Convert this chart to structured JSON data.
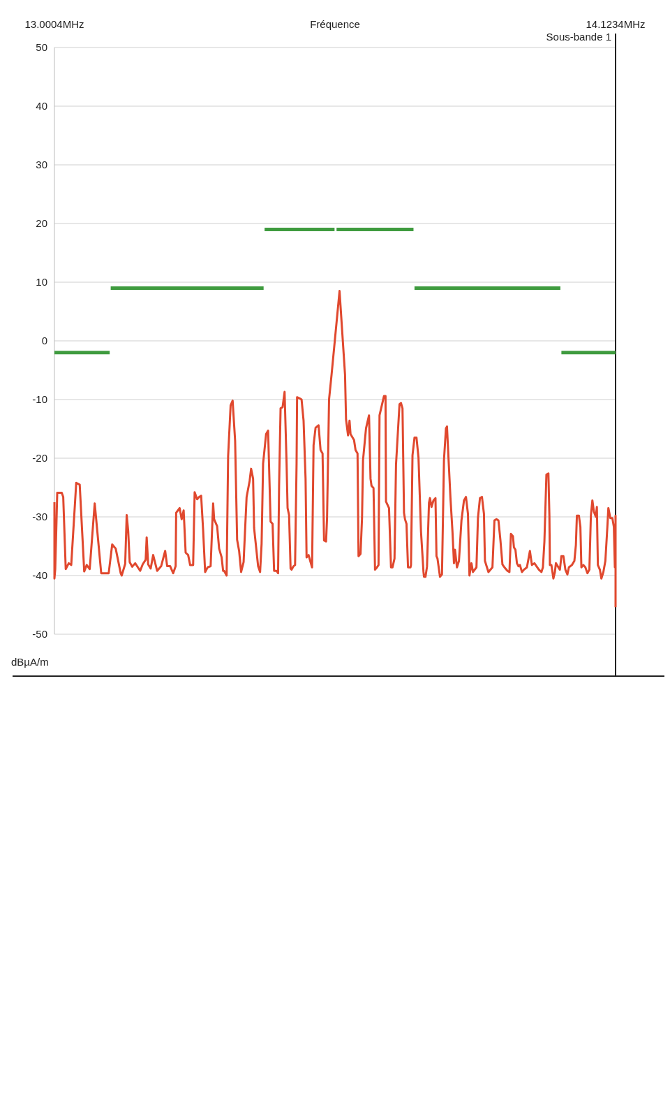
{
  "chart_data": {
    "type": "line",
    "xlabel": "Fréquence",
    "ylabel": "dBµA/m",
    "annotations": [
      "Sous-bande 1"
    ],
    "xlim": [
      13.0004,
      14.1234
    ],
    "xticks": [
      {
        "value": 13.0004,
        "label": "13.0004MHz"
      },
      {
        "value": 14.1234,
        "label": "14.1234MHz"
      }
    ],
    "ylim": [
      -50,
      50
    ],
    "yticks": [
      50,
      40,
      30,
      20,
      10,
      0,
      -10,
      -20,
      -30,
      -40,
      -50
    ],
    "grid": "y",
    "line_style": "solid",
    "series": [
      {
        "color": "#e0482e",
        "x": [
          13.0004,
          13.0004,
          13.002,
          13.006,
          13.015,
          13.018,
          13.023,
          13.029,
          13.034,
          13.044,
          13.051,
          13.06,
          13.065,
          13.071,
          13.081,
          13.094,
          13.109,
          13.116,
          13.123,
          13.133,
          13.135,
          13.142,
          13.145,
          13.148,
          13.151,
          13.156,
          13.162,
          13.172,
          13.177,
          13.183,
          13.185,
          13.188,
          13.193,
          13.198,
          13.206,
          13.214,
          13.222,
          13.226,
          13.232,
          13.238,
          13.243,
          13.244,
          13.251,
          13.255,
          13.259,
          13.263,
          13.268,
          13.272,
          13.278,
          13.281,
          13.286,
          13.29,
          13.294,
          13.298,
          13.302,
          13.307,
          13.313,
          13.318,
          13.32,
          13.326,
          13.33,
          13.335,
          13.338,
          13.34,
          13.345,
          13.348,
          13.353,
          13.357,
          13.362,
          13.366,
          13.37,
          13.374,
          13.379,
          13.385,
          13.391,
          13.394,
          13.398,
          13.4,
          13.408,
          13.412,
          13.415,
          13.418,
          13.424,
          13.428,
          13.433,
          13.437,
          13.44,
          13.445,
          13.448,
          13.45,
          13.453,
          13.457,
          13.461,
          13.465,
          13.467,
          13.47,
          13.473,
          13.475,
          13.479,
          13.482,
          13.485,
          13.486,
          13.491,
          13.495,
          13.499,
          13.503,
          13.505,
          13.509,
          13.516,
          13.519,
          13.523,
          13.529,
          13.533,
          13.537,
          13.54,
          13.544,
          13.546,
          13.55,
          13.555,
          13.571,
          13.582,
          13.584,
          13.588,
          13.591,
          13.593,
          13.6,
          13.603,
          13.607,
          13.609,
          13.613,
          13.616,
          13.618,
          13.624,
          13.63,
          13.633,
          13.635,
          13.639,
          13.642,
          13.646,
          13.649,
          13.651,
          13.66,
          13.663,
          13.664,
          13.67,
          13.674,
          13.677,
          13.681,
          13.684,
          13.691,
          13.694,
          13.697,
          13.7,
          13.702,
          13.705,
          13.708,
          13.713,
          13.714,
          13.717,
          13.721,
          13.725,
          13.729,
          13.734,
          13.739,
          13.74,
          13.743,
          13.746,
          13.75,
          13.752,
          13.755,
          13.759,
          13.763,
          13.765,
          13.767,
          13.772,
          13.776,
          13.78,
          13.784,
          13.786,
          13.789,
          13.793,
          13.797,
          13.8,
          13.802,
          13.806,
          13.81,
          13.815,
          13.82,
          13.824,
          13.828,
          13.831,
          13.835,
          13.838,
          13.845,
          13.848,
          13.852,
          13.856,
          13.86,
          13.862,
          13.866,
          13.869,
          13.877,
          13.881,
          13.885,
          13.889,
          13.893,
          13.897,
          13.901,
          13.907,
          13.911,
          13.914,
          13.918,
          13.92,
          13.923,
          13.926,
          13.929,
          13.932,
          13.936,
          13.94,
          13.946,
          13.952,
          13.956,
          13.961,
          13.97,
          13.975,
          13.978,
          13.981,
          13.985,
          13.989,
          13.991,
          13.992,
          13.995,
          13.999,
          14.002,
          14.004,
          14.012,
          14.015,
          14.019,
          14.023,
          14.027,
          14.03,
          14.036,
          14.041,
          14.044,
          14.046,
          14.05,
          14.053,
          14.055,
          14.059,
          14.063,
          14.067,
          14.071,
          14.074,
          14.077,
          14.08,
          14.084,
          14.086,
          14.088,
          14.092,
          14.095,
          14.099,
          14.103,
          14.107,
          14.109,
          14.113,
          14.117,
          14.12,
          14.122,
          14.1234,
          14.1234,
          14.1234
        ],
        "values": [
          -27.5,
          -40.5,
          -38.9,
          -25.9,
          -25.9,
          -26.6,
          -38.9,
          -37.9,
          -38.2,
          -24.2,
          -24.5,
          -39.3,
          -38.2,
          -38.9,
          -27.7,
          -39.6,
          -39.6,
          -34.7,
          -35.4,
          -39.6,
          -40,
          -38,
          -29.7,
          -32.4,
          -37.7,
          -38.5,
          -37.9,
          -39.2,
          -38.1,
          -37.3,
          -33.5,
          -38.1,
          -38.8,
          -36.5,
          -39.2,
          -38.4,
          -35.8,
          -38.4,
          -38.4,
          -39.6,
          -38.4,
          -29.3,
          -28.5,
          -30.4,
          -28.9,
          -36.1,
          -36.5,
          -38.2,
          -38.2,
          -25.8,
          -27,
          -26.6,
          -26.4,
          -32.3,
          -39.4,
          -38.6,
          -38.4,
          -27.7,
          -30.4,
          -31.6,
          -35.4,
          -36.9,
          -39.2,
          -39.2,
          -40,
          -19.7,
          -11,
          -10.2,
          -17,
          -33.9,
          -35.8,
          -39.4,
          -37.7,
          -26.6,
          -23.9,
          -21.8,
          -23.5,
          -31.9,
          -38.4,
          -39.4,
          -34.6,
          -20.9,
          -15.9,
          -15.3,
          -30.8,
          -31.2,
          -39.2,
          -39.2,
          -39.6,
          -24.7,
          -11.5,
          -11.3,
          -8.7,
          -20.9,
          -28.5,
          -29.7,
          -38.8,
          -39,
          -38.4,
          -38.2,
          -20.9,
          -9.6,
          -9.8,
          -10,
          -13.6,
          -23.5,
          -36.9,
          -36.5,
          -38.6,
          -17.8,
          -14.8,
          -14.4,
          -18.6,
          -19.2,
          -34,
          -34.2,
          -30.2,
          -10,
          -5.8,
          8.5,
          -5.8,
          -13.4,
          -16.1,
          -13.6,
          -15.9,
          -16.9,
          -18.6,
          -19.2,
          -36.7,
          -36.3,
          -30.2,
          -20.3,
          -14.9,
          -12.7,
          -23.5,
          -24.7,
          -25.1,
          -39,
          -38.6,
          -38.2,
          -12.7,
          -9.4,
          -9.4,
          -27.4,
          -28.5,
          -38.6,
          -38.6,
          -37.1,
          -21.1,
          -10.8,
          -10.6,
          -11.5,
          -29.3,
          -30.4,
          -31.2,
          -38.6,
          -38.6,
          -38.2,
          -19.5,
          -16.5,
          -16.5,
          -19.9,
          -32.5,
          -39.4,
          -40.2,
          -40.2,
          -38.5,
          -27.6,
          -26.8,
          -28.3,
          -27.2,
          -26.8,
          -36.7,
          -37.1,
          -40.2,
          -39.8,
          -20.3,
          -14.9,
          -14.6,
          -19.9,
          -26.8,
          -32.5,
          -37.9,
          -35.6,
          -38.6,
          -37.5,
          -30.6,
          -27.2,
          -26.6,
          -29.5,
          -40,
          -37.9,
          -39.4,
          -38.6,
          -30.2,
          -26.8,
          -26.6,
          -29.5,
          -37.5,
          -38.6,
          -39.4,
          -38.6,
          -30.6,
          -30.4,
          -30.6,
          -34,
          -38.1,
          -38.6,
          -39.2,
          -39.4,
          -32.9,
          -33.3,
          -35.2,
          -35.6,
          -37.9,
          -38.4,
          -38.2,
          -39.4,
          -39,
          -38.6,
          -35.8,
          -38.2,
          -37.9,
          -39,
          -39.4,
          -38.6,
          -34.2,
          -22.8,
          -22.6,
          -29.8,
          -38.2,
          -38.2,
          -40.5,
          -39.4,
          -37.9,
          -39,
          -36.7,
          -36.7,
          -39,
          -39.8,
          -38.6,
          -38.2,
          -37.5,
          -34.8,
          -29.8,
          -29.8,
          -31.7,
          -38.6,
          -38.2,
          -38.6,
          -39.6,
          -39,
          -29.8,
          -27.2,
          -29.1,
          -30,
          -28.3,
          -38.2,
          -39,
          -40.5,
          -39.4,
          -37.5,
          -31.7,
          -28.5,
          -30.2,
          -30.2,
          -31.7,
          -38.6,
          -38.6,
          -29.8,
          -45.4
        ]
      },
      {
        "color": "#3f9b3f",
        "x": [
          13.0004,
          13.111,
          13.112,
          13.113,
          13.419,
          13.42,
          13.421,
          13.561,
          13.563,
          13.565,
          13.719,
          13.72,
          13.721,
          14.013,
          14.014,
          14.015,
          14.1234
        ],
        "values": [
          -2,
          -2,
          null,
          9,
          9,
          null,
          19,
          19,
          null,
          19,
          19,
          null,
          9,
          9,
          null,
          -2,
          -2
        ]
      }
    ]
  }
}
